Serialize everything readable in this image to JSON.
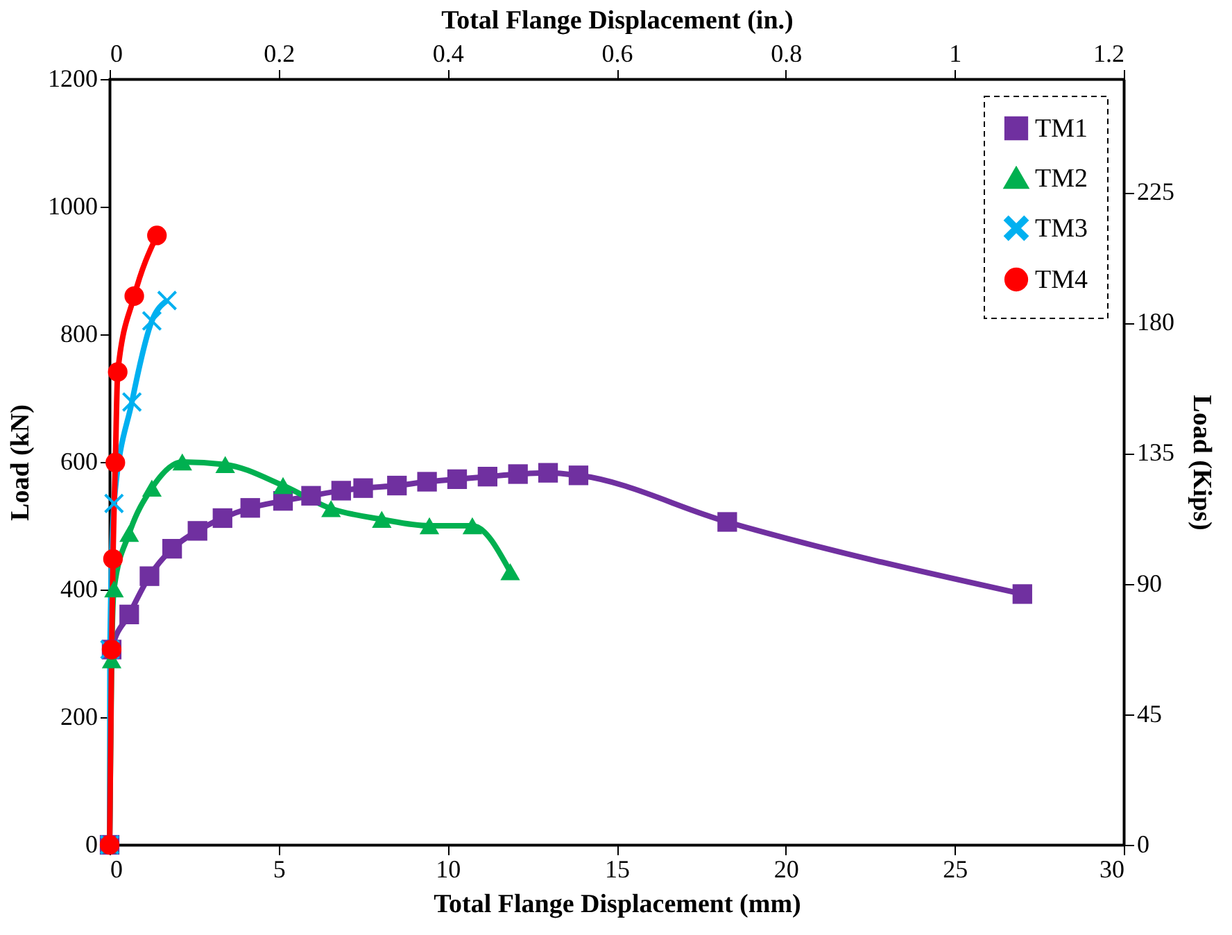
{
  "chart_data": {
    "type": "line",
    "xlabel": "Total Flange Displacement (mm)",
    "ylabel": "Load (kN)",
    "x2label": "Total Flange Displacement (in.)",
    "y2label": "Load (Kips)",
    "xlim": [
      0,
      30
    ],
    "xticks": [
      0,
      5,
      10,
      15,
      20,
      25,
      30
    ],
    "ylim": [
      0,
      1200
    ],
    "yticks": [
      0,
      200,
      400,
      600,
      800,
      1000,
      1200
    ],
    "x2lim": [
      0,
      1.2
    ],
    "x2ticks": [
      0,
      0.2,
      0.4,
      0.6,
      0.8,
      1,
      1.2
    ],
    "y2lim": [
      0,
      264
    ],
    "y2ticks": [
      0,
      45,
      90,
      135,
      180,
      225
    ],
    "grid": false,
    "legend": "top right",
    "series": [
      {
        "name": "TM1",
        "color": "#7030a0",
        "marker": "square",
        "x": [
          0,
          0.06,
          0.58,
          1.18,
          1.85,
          2.6,
          3.34,
          4.16,
          5.13,
          5.96,
          6.85,
          7.5,
          8.5,
          9.39,
          10.28,
          11.18,
          12.08,
          12.97,
          13.87,
          18.27,
          27.0
        ],
        "values": [
          0,
          306,
          361,
          421,
          464,
          492,
          512,
          528,
          539,
          547,
          555,
          559,
          563,
          569,
          573,
          577,
          581,
          583,
          579,
          506,
          393
        ]
      },
      {
        "name": "TM2",
        "color": "#00b050",
        "marker": "triangle",
        "x": [
          0,
          0.06,
          0.13,
          0.58,
          1.25,
          2.15,
          3.42,
          5.13,
          6.55,
          8.05,
          9.46,
          10.73,
          11.85
        ],
        "values": [
          0,
          290,
          401,
          488,
          559,
          600,
          596,
          563,
          527,
          510,
          500,
          500,
          428
        ]
      },
      {
        "name": "TM3",
        "color": "#00b0f0",
        "marker": "cross",
        "x": [
          0,
          0.01,
          0.13,
          0.66,
          1.25,
          1.7
        ],
        "values": [
          0,
          306,
          535,
          694,
          821,
          853
        ]
      },
      {
        "name": "TM4",
        "color": "#ff0000",
        "marker": "circle",
        "x": [
          0,
          0.06,
          0.1,
          0.17,
          0.24,
          0.73,
          1.4
        ],
        "values": [
          0,
          306,
          448,
          599,
          741,
          860,
          955
        ]
      }
    ]
  }
}
